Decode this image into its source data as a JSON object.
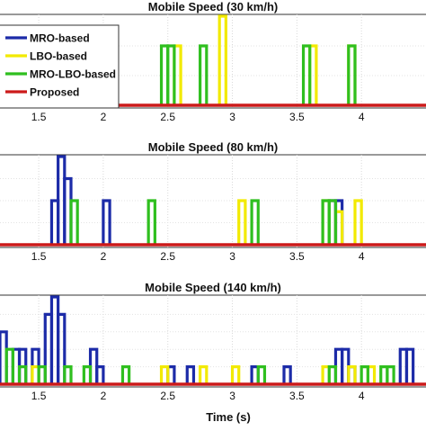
{
  "chart_data": [
    {
      "type": "line",
      "title": "Mobile Speed (30 km/h)",
      "xlim": [
        1.2,
        4.5
      ],
      "xticks": [
        "1.5",
        "2",
        "2.5",
        "3",
        "3.5",
        "4"
      ],
      "legend_position": "top-left",
      "grid": true,
      "series": [
        {
          "name": "MRO-based",
          "color": "#1c2ba8",
          "pulses": []
        },
        {
          "name": "LBO-based",
          "color": "#f2ea00",
          "pulses": [
            [
              2.55,
              2.6,
              2
            ],
            [
              2.9,
              2.95,
              3
            ],
            [
              3.6,
              3.65,
              2
            ],
            [
              3.9,
              3.95,
              2
            ]
          ]
        },
        {
          "name": "MRO-LBO-based",
          "color": "#2fbf1f",
          "pulses": [
            [
              2.45,
              2.5,
              2
            ],
            [
              2.5,
              2.55,
              2
            ],
            [
              2.75,
              2.8,
              2
            ],
            [
              3.55,
              3.6,
              2
            ],
            [
              3.9,
              3.95,
              2
            ]
          ]
        },
        {
          "name": "Proposed",
          "color": "#cc1a1a",
          "pulses": []
        }
      ]
    },
    {
      "type": "line",
      "title": "Mobile Speed (80 km/h)",
      "xlim": [
        1.2,
        4.5
      ],
      "xticks": [
        "1.5",
        "2",
        "2.5",
        "3",
        "3.5",
        "4"
      ],
      "grid": true,
      "series": [
        {
          "name": "MRO-based",
          "color": "#1c2ba8",
          "pulses": [
            [
              1.6,
              1.65,
              2
            ],
            [
              1.65,
              1.7,
              4
            ],
            [
              1.7,
              1.75,
              3
            ],
            [
              2,
              2.05,
              2
            ],
            [
              3.75,
              3.8,
              2
            ],
            [
              3.8,
              3.85,
              2
            ]
          ]
        },
        {
          "name": "LBO-based",
          "color": "#f2ea00",
          "pulses": [
            [
              3.05,
              3.1,
              2
            ],
            [
              3.7,
              3.75,
              2
            ],
            [
              3.8,
              3.85,
              1.5
            ],
            [
              3.95,
              4.0,
              2
            ]
          ]
        },
        {
          "name": "MRO-LBO-based",
          "color": "#2fbf1f",
          "pulses": [
            [
              1.75,
              1.8,
              2
            ],
            [
              2.35,
              2.4,
              2
            ],
            [
              3.15,
              3.2,
              2
            ],
            [
              3.7,
              3.75,
              2
            ],
            [
              3.75,
              3.8,
              2
            ]
          ]
        },
        {
          "name": "Proposed",
          "color": "#cc1a1a",
          "pulses": []
        }
      ]
    },
    {
      "type": "line",
      "title": "Mobile Speed (140 km/h)",
      "xlim": [
        1.2,
        4.5
      ],
      "xticks": [
        "1.5",
        "2",
        "2.5",
        "3",
        "3.5",
        "4"
      ],
      "xlabel": "Time (s)",
      "grid": true,
      "series": [
        {
          "name": "MRO-based",
          "color": "#1c2ba8",
          "pulses": [
            [
              1.2,
              1.25,
              3
            ],
            [
              1.3,
              1.35,
              2
            ],
            [
              1.35,
              1.4,
              2
            ],
            [
              1.45,
              1.5,
              2
            ],
            [
              1.55,
              1.6,
              4
            ],
            [
              1.6,
              1.65,
              5
            ],
            [
              1.65,
              1.7,
              4
            ],
            [
              1.9,
              1.95,
              2
            ],
            [
              1.95,
              2.0,
              1
            ],
            [
              2.5,
              2.55,
              1
            ],
            [
              2.65,
              2.7,
              1
            ],
            [
              3.15,
              3.2,
              1
            ],
            [
              3.4,
              3.45,
              1
            ],
            [
              3.8,
              3.85,
              2
            ],
            [
              3.85,
              3.9,
              2
            ],
            [
              3.9,
              3.95,
              1
            ],
            [
              4.3,
              4.35,
              2
            ],
            [
              4.35,
              4.4,
              2
            ]
          ]
        },
        {
          "name": "LBO-based",
          "color": "#f2ea00",
          "pulses": [
            [
              1.45,
              1.5,
              1
            ],
            [
              2.45,
              2.5,
              1
            ],
            [
              2.75,
              2.8,
              1
            ],
            [
              3.0,
              3.05,
              1
            ],
            [
              3.7,
              3.75,
              1
            ],
            [
              3.9,
              3.95,
              1
            ],
            [
              4.05,
              4.1,
              1
            ]
          ]
        },
        {
          "name": "MRO-LBO-based",
          "color": "#2fbf1f",
          "pulses": [
            [
              1.25,
              1.3,
              2
            ],
            [
              1.35,
              1.4,
              1
            ],
            [
              1.5,
              1.55,
              1
            ],
            [
              1.7,
              1.75,
              1
            ],
            [
              1.85,
              1.9,
              1
            ],
            [
              2.15,
              2.2,
              1
            ],
            [
              3.2,
              3.25,
              1
            ],
            [
              3.75,
              3.8,
              1
            ],
            [
              4.0,
              4.05,
              1
            ],
            [
              4.15,
              4.2,
              1
            ],
            [
              4.2,
              4.25,
              1
            ]
          ]
        },
        {
          "name": "Proposed",
          "color": "#cc1a1a",
          "pulses": []
        }
      ]
    }
  ]
}
